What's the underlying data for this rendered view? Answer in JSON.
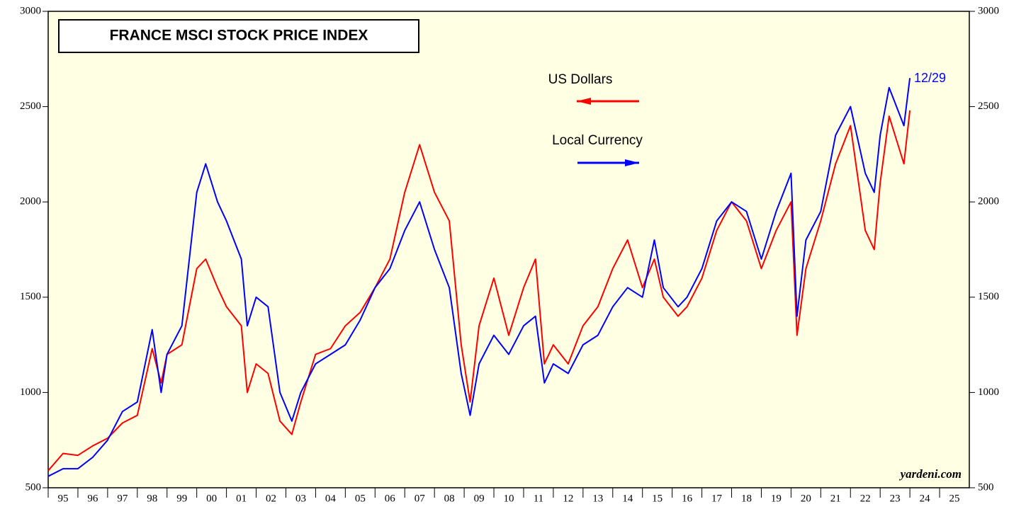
{
  "chart_data": {
    "type": "line",
    "title": "FRANCE MSCI STOCK PRICE INDEX",
    "x": [
      1995.0,
      1995.5,
      1996.0,
      1996.5,
      1997.0,
      1997.5,
      1998.0,
      1998.5,
      1998.8,
      1999.0,
      1999.5,
      2000.0,
      2000.3,
      2000.7,
      2001.0,
      2001.5,
      2001.7,
      2002.0,
      2002.4,
      2002.8,
      2003.2,
      2003.5,
      2004.0,
      2004.5,
      2005.0,
      2005.5,
      2006.0,
      2006.5,
      2007.0,
      2007.5,
      2008.0,
      2008.5,
      2008.9,
      2009.2,
      2009.5,
      2010.0,
      2010.5,
      2011.0,
      2011.4,
      2011.7,
      2012.0,
      2012.5,
      2013.0,
      2013.5,
      2014.0,
      2014.5,
      2015.0,
      2015.4,
      2015.7,
      2016.2,
      2016.5,
      2017.0,
      2017.5,
      2018.0,
      2018.5,
      2019.0,
      2019.5,
      2020.0,
      2020.2,
      2020.5,
      2021.0,
      2021.5,
      2022.0,
      2022.5,
      2022.8,
      2023.0,
      2023.3,
      2023.8,
      2024.0
    ],
    "series": [
      {
        "name": "US Dollars",
        "color": "#ff0000",
        "values": [
          590,
          680,
          670,
          720,
          760,
          840,
          880,
          1230,
          1050,
          1200,
          1250,
          1650,
          1700,
          1550,
          1450,
          1350,
          1000,
          1150,
          1100,
          850,
          780,
          950,
          1200,
          1230,
          1350,
          1420,
          1550,
          1700,
          2050,
          2300,
          2050,
          1900,
          1250,
          950,
          1350,
          1600,
          1300,
          1550,
          1700,
          1150,
          1250,
          1150,
          1350,
          1450,
          1650,
          1800,
          1550,
          1700,
          1500,
          1400,
          1450,
          1600,
          1850,
          2000,
          1900,
          1650,
          1850,
          2000,
          1300,
          1650,
          1900,
          2200,
          2400,
          1850,
          1750,
          2100,
          2450,
          2200,
          2480
        ]
      },
      {
        "name": "Local Currency",
        "color": "#0000ff",
        "values": [
          560,
          600,
          600,
          660,
          750,
          900,
          950,
          1330,
          1000,
          1200,
          1350,
          2050,
          2200,
          2000,
          1900,
          1700,
          1350,
          1500,
          1450,
          1000,
          850,
          1000,
          1150,
          1200,
          1250,
          1380,
          1550,
          1650,
          1850,
          2000,
          1750,
          1550,
          1100,
          880,
          1150,
          1300,
          1200,
          1350,
          1400,
          1050,
          1150,
          1100,
          1250,
          1300,
          1450,
          1550,
          1500,
          1800,
          1550,
          1450,
          1500,
          1650,
          1900,
          2000,
          1950,
          1700,
          1950,
          2150,
          1400,
          1800,
          1950,
          2350,
          2500,
          2150,
          2050,
          2350,
          2600,
          2400,
          2650
        ]
      }
    ],
    "xlim": [
      1995,
      2026
    ],
    "xticks": [
      {
        "value": 1995,
        "label": "95"
      },
      {
        "value": 1996,
        "label": "96"
      },
      {
        "value": 1997,
        "label": "97"
      },
      {
        "value": 1998,
        "label": "98"
      },
      {
        "value": 1999,
        "label": "99"
      },
      {
        "value": 2000,
        "label": "00"
      },
      {
        "value": 2001,
        "label": "01"
      },
      {
        "value": 2002,
        "label": "02"
      },
      {
        "value": 2003,
        "label": "03"
      },
      {
        "value": 2004,
        "label": "04"
      },
      {
        "value": 2005,
        "label": "05"
      },
      {
        "value": 2006,
        "label": "06"
      },
      {
        "value": 2007,
        "label": "07"
      },
      {
        "value": 2008,
        "label": "08"
      },
      {
        "value": 2009,
        "label": "09"
      },
      {
        "value": 2010,
        "label": "10"
      },
      {
        "value": 2011,
        "label": "11"
      },
      {
        "value": 2012,
        "label": "12"
      },
      {
        "value": 2013,
        "label": "13"
      },
      {
        "value": 2014,
        "label": "14"
      },
      {
        "value": 2015,
        "label": "15"
      },
      {
        "value": 2016,
        "label": "16"
      },
      {
        "value": 2017,
        "label": "17"
      },
      {
        "value": 2018,
        "label": "18"
      },
      {
        "value": 2019,
        "label": "19"
      },
      {
        "value": 2020,
        "label": "20"
      },
      {
        "value": 2021,
        "label": "21"
      },
      {
        "value": 2022,
        "label": "22"
      },
      {
        "value": 2023,
        "label": "23"
      },
      {
        "value": 2024,
        "label": "24"
      },
      {
        "value": 2025,
        "label": "25"
      }
    ],
    "ylim": [
      500,
      3000
    ],
    "yticks": [
      500,
      1000,
      1500,
      2000,
      2500,
      3000
    ],
    "annotations": [
      "12/29",
      "yardeni.com"
    ]
  }
}
